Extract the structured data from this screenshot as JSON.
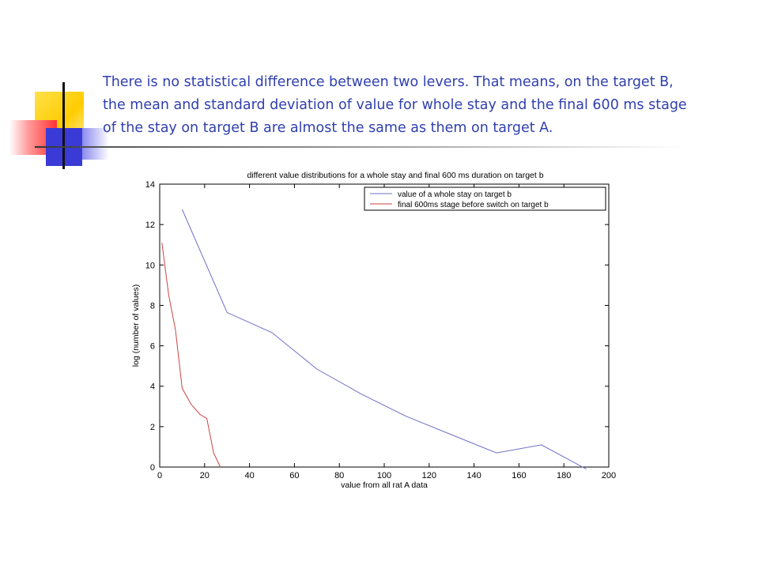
{
  "slide": {
    "text_lines": [
      "There is no statistical difference between two levers. That means, on the target B,",
      "the mean and standard deviation of value for whole stay and the final 600 ms stage",
      "of the stay on target B are almost the same as them on target A."
    ]
  },
  "chart_data": {
    "type": "line",
    "title": "different value distributions for a whole stay and final 600 ms duration on target b",
    "xlabel": "value from all rat A data",
    "ylabel": "log (number of values)",
    "xlim": [
      0,
      200
    ],
    "ylim": [
      0,
      14
    ],
    "xticks": [
      0,
      20,
      40,
      60,
      80,
      100,
      120,
      140,
      160,
      180,
      200
    ],
    "yticks": [
      0,
      2,
      4,
      6,
      8,
      10,
      12,
      14
    ],
    "grid": false,
    "legend_position": "top-right",
    "series": [
      {
        "name": "value of a whole stay on target b",
        "color": "#6f6fc8",
        "x": [
          10,
          30,
          50,
          70,
          90,
          110,
          130,
          150,
          170,
          190
        ],
        "y": [
          12.75,
          7.65,
          6.65,
          4.85,
          3.6,
          2.5,
          1.6,
          0.7,
          1.1,
          -0.1
        ]
      },
      {
        "name": "final 600ms stage before switch on target b",
        "color": "#cc4444",
        "x": [
          1,
          4,
          7,
          10,
          14,
          18,
          21,
          24,
          27
        ],
        "y": [
          11.1,
          8.5,
          6.8,
          3.9,
          3.1,
          2.6,
          2.4,
          0.7,
          0
        ]
      }
    ]
  }
}
